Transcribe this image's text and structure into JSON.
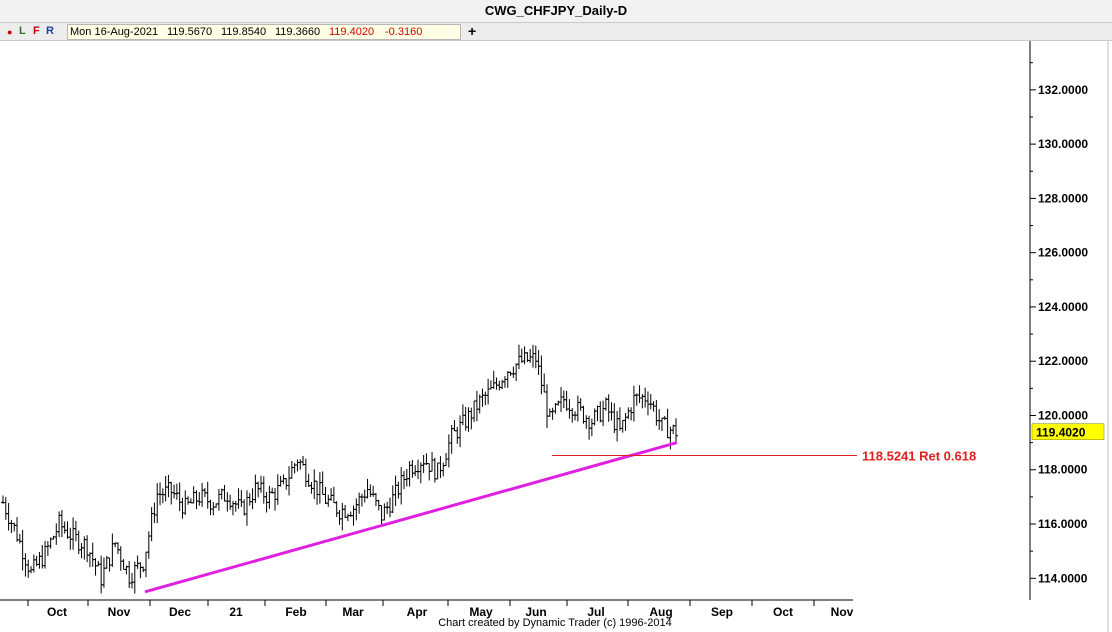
{
  "title": "CWG_CHFJPY_Daily-D",
  "toolbar": {
    "dot": "●",
    "l": "L",
    "f": "F",
    "r": "R",
    "date": "Mon 16-Aug-2021",
    "open": "119.5670",
    "high": "119.8540",
    "low": "119.3660",
    "close": "119.4020",
    "change": "-0.3160",
    "plus": "+"
  },
  "credit": "Chart created by Dynamic Trader  (c)  1996-2014",
  "colors": {
    "trendline": "#e020e0",
    "retracement": "#e02020",
    "last_price_bg": "#ffff00",
    "bars": "#000000"
  },
  "chart_data": {
    "type": "ohlc",
    "title": "CWG_CHFJPY_Daily-D",
    "ylim": [
      113.2,
      133.8
    ],
    "y_ticks": [
      "114.0000",
      "116.0000",
      "118.0000",
      "120.0000",
      "122.0000",
      "124.0000",
      "126.0000",
      "128.0000",
      "130.0000",
      "132.0000"
    ],
    "y_tick_values": [
      114,
      116,
      118,
      120,
      122,
      124,
      126,
      128,
      130,
      132
    ],
    "x_labels": [
      "Oct",
      "Nov",
      "Dec",
      "21",
      "Feb",
      "Mar",
      "Apr",
      "May",
      "Jun",
      "Jul",
      "Aug",
      "Sep",
      "Oct",
      "Nov"
    ],
    "last_price": "119.4020",
    "last_price_value": 119.402,
    "retracement": {
      "label": "118.5241 Ret 0.618",
      "value": 118.5241
    },
    "trendline": {
      "start": {
        "date": "2020-11-19",
        "value": 113.5
      },
      "end": {
        "date": "2021-08-16",
        "value": 119.0
      }
    },
    "closes": [
      {
        "d": "Sep-14",
        "c": 116.8
      },
      {
        "d": "Sep-21",
        "c": 115.6
      },
      {
        "d": "Sep-28",
        "c": 114.2
      },
      {
        "d": "Oct-05",
        "c": 114.9
      },
      {
        "d": "Oct-12",
        "c": 116.0
      },
      {
        "d": "Oct-19",
        "c": 115.5
      },
      {
        "d": "Oct-26",
        "c": 115.2
      },
      {
        "d": "Nov-02",
        "c": 114.0
      },
      {
        "d": "Nov-09",
        "c": 115.3
      },
      {
        "d": "Nov-16",
        "c": 114.1
      },
      {
        "d": "Nov-23",
        "c": 114.6
      },
      {
        "d": "Nov-30",
        "c": 117.1
      },
      {
        "d": "Dec-07",
        "c": 117.2
      },
      {
        "d": "Dec-14",
        "c": 116.6
      },
      {
        "d": "Dec-21",
        "c": 117.0
      },
      {
        "d": "Dec-28",
        "c": 116.8
      },
      {
        "d": "Jan-04",
        "c": 117.1
      },
      {
        "d": "Jan-11",
        "c": 116.5
      },
      {
        "d": "Jan-18",
        "c": 117.3
      },
      {
        "d": "Jan-25",
        "c": 117.0
      },
      {
        "d": "Feb-01",
        "c": 117.4
      },
      {
        "d": "Feb-08",
        "c": 118.4
      },
      {
        "d": "Feb-15",
        "c": 117.6
      },
      {
        "d": "Feb-22",
        "c": 116.9
      },
      {
        "d": "Mar-01",
        "c": 116.5
      },
      {
        "d": "Mar-08",
        "c": 116.6
      },
      {
        "d": "Mar-15",
        "c": 117.3
      },
      {
        "d": "Mar-22",
        "c": 116.3
      },
      {
        "d": "Mar-29",
        "c": 117.1
      },
      {
        "d": "Apr-05",
        "c": 118.1
      },
      {
        "d": "Apr-12",
        "c": 118.4
      },
      {
        "d": "Apr-19",
        "c": 117.9
      },
      {
        "d": "Apr-26",
        "c": 119.2
      },
      {
        "d": "May-03",
        "c": 119.8
      },
      {
        "d": "May-10",
        "c": 120.5
      },
      {
        "d": "May-17",
        "c": 121.0
      },
      {
        "d": "May-24",
        "c": 121.7
      },
      {
        "d": "May-31",
        "c": 122.0
      },
      {
        "d": "Jun-07",
        "c": 122.1
      },
      {
        "d": "Jun-14",
        "c": 119.8
      },
      {
        "d": "Jun-21",
        "c": 120.6
      },
      {
        "d": "Jun-28",
        "c": 120.2
      },
      {
        "d": "Jul-05",
        "c": 119.8
      },
      {
        "d": "Jul-12",
        "c": 120.3
      },
      {
        "d": "Jul-19",
        "c": 119.4
      },
      {
        "d": "Jul-26",
        "c": 120.6
      },
      {
        "d": "Aug-02",
        "c": 120.7
      },
      {
        "d": "Aug-09",
        "c": 119.6
      },
      {
        "d": "Aug-16",
        "c": 119.4
      }
    ]
  }
}
